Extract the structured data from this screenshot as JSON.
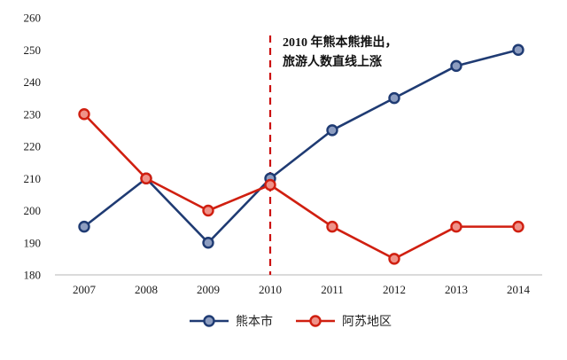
{
  "chart_data": {
    "type": "line",
    "title": "",
    "xlabel": "",
    "ylabel": "",
    "categories": [
      "2007",
      "2008",
      "2009",
      "2010",
      "2011",
      "2012",
      "2013",
      "2014"
    ],
    "series": [
      {
        "name": "熊本市",
        "color": "#1f3b73",
        "marker_fill": "#8d9dc0",
        "values": [
          195,
          210,
          190,
          210,
          225,
          235,
          245,
          250
        ]
      },
      {
        "name": "阿苏地区",
        "color": "#d01f10",
        "marker_fill": "#ef9289",
        "values": [
          230,
          210,
          200,
          208,
          195,
          185,
          195,
          195
        ]
      }
    ],
    "ylim": [
      180,
      260
    ],
    "ytick_step": 10,
    "yticks": [
      "180",
      "190",
      "200",
      "210",
      "220",
      "230",
      "240",
      "250",
      "260"
    ],
    "grid": false,
    "legend_position": "bottom",
    "annotation": {
      "x_category": "2010",
      "lines": [
        "2010 年熊本熊推出，",
        "旅游人数直线上涨"
      ],
      "line_color": "#cc1111",
      "line_style": "dashed"
    }
  }
}
